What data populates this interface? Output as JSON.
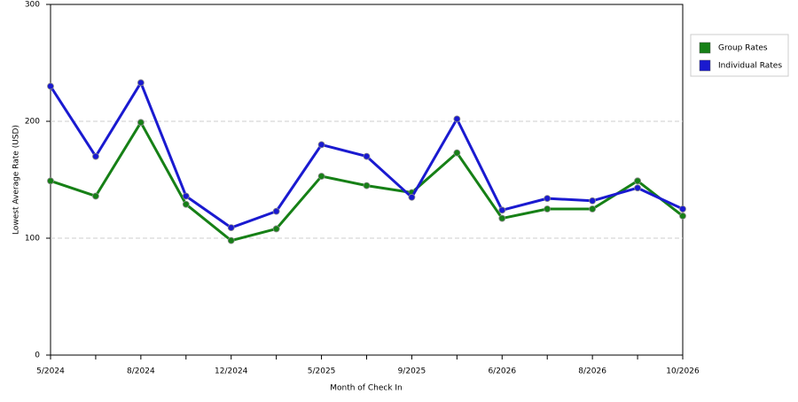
{
  "chart_data": {
    "type": "line",
    "x_label": "Month of Check In",
    "y_label": "Lowest Average Rate (USD)",
    "categories": [
      "5/2024",
      null,
      "8/2024",
      null,
      "12/2024",
      null,
      "5/2025",
      null,
      "9/2025",
      null,
      "6/2026",
      null,
      "8/2026",
      null,
      "10/2026"
    ],
    "series": [
      {
        "name": "Group Rates",
        "color": "#168016",
        "values": [
          149,
          136,
          199,
          129,
          98,
          108,
          153,
          145,
          139,
          173,
          117,
          125,
          125,
          149,
          119
        ]
      },
      {
        "name": "Individual Rates",
        "color": "#1a1ad0",
        "values": [
          230,
          170,
          233,
          136,
          109,
          123,
          180,
          170,
          135,
          202,
          124,
          134,
          132,
          143,
          125
        ]
      }
    ],
    "ylim": [
      0,
      300
    ],
    "yticks": [
      0,
      100,
      200,
      300
    ],
    "grid": true,
    "legend": "right"
  }
}
